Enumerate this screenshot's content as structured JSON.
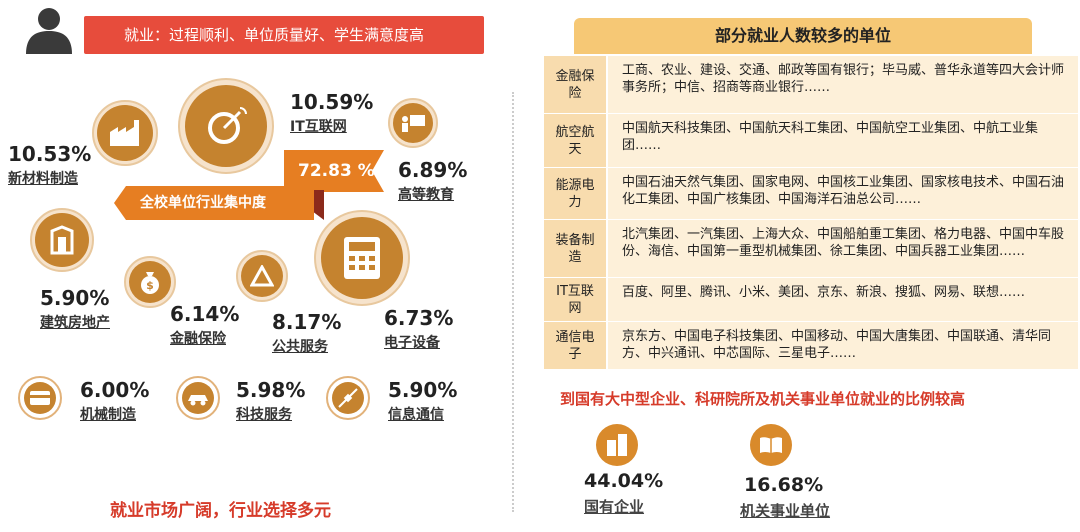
{
  "banner": "就业：过程顺利、单位质量好、学生满意度高",
  "ribbon": {
    "title": "全校单位行业集中度",
    "value": "72.83 %"
  },
  "industries": [
    {
      "pct": "10.53%",
      "label": "新材料制造"
    },
    {
      "pct": "10.59%",
      "label": "IT互联网"
    },
    {
      "pct": "6.89%",
      "label": "高等教育"
    },
    {
      "pct": "5.90%",
      "label": "建筑房地产"
    },
    {
      "pct": "6.14%",
      "label": "金融保险"
    },
    {
      "pct": "8.17%",
      "label": "公共服务"
    },
    {
      "pct": "6.73%",
      "label": "电子设备"
    },
    {
      "pct": "6.00%",
      "label": "机械制造"
    },
    {
      "pct": "5.98%",
      "label": "科技服务"
    },
    {
      "pct": "5.90%",
      "label": "信息通信"
    }
  ],
  "left_footer": "就业市场广阔，行业选择多元",
  "table": {
    "title": "部分就业人数较多的单位",
    "rows": [
      {
        "cat": "金融保险",
        "val": "工商、农业、建设、交通、邮政等国有银行；毕马威、普华永道等四大会计师事务所；中信、招商等商业银行……"
      },
      {
        "cat": "航空航天",
        "val": "中国航天科技集团、中国航天科工集团、中国航空工业集团、中航工业集团……"
      },
      {
        "cat": "能源电力",
        "val": "中国石油天然气集团、国家电网、中国核工业集团、国家核电技术、中国石油化工集团、中国广核集团、中国海洋石油总公司……"
      },
      {
        "cat": "装备制造",
        "val": "北汽集团、一汽集团、上海大众、中国船舶重工集团、格力电器、中国中车股份、海信、中国第一重型机械集团、徐工集团、中国兵器工业集团……"
      },
      {
        "cat": "IT互联网",
        "val": "百度、阿里、腾讯、小米、美团、京东、新浪、搜狐、网易、联想……"
      },
      {
        "cat": "通信电子",
        "val": "京东方、中国电子科技集团、中国移动、中国大唐集团、中国联通、清华同方、中兴通讯、中芯国际、三星电子……"
      }
    ]
  },
  "right_caption": "到国有大中型企业、科研院所及机关事业单位就业的比例较高",
  "stats": [
    {
      "pct": "44.04%",
      "label": "国有企业"
    },
    {
      "pct": "16.68%",
      "label": "机关事业单位"
    }
  ],
  "colors": {
    "accent": "#e67e22",
    "red": "#d63b2a",
    "brown": "#c5832f"
  }
}
